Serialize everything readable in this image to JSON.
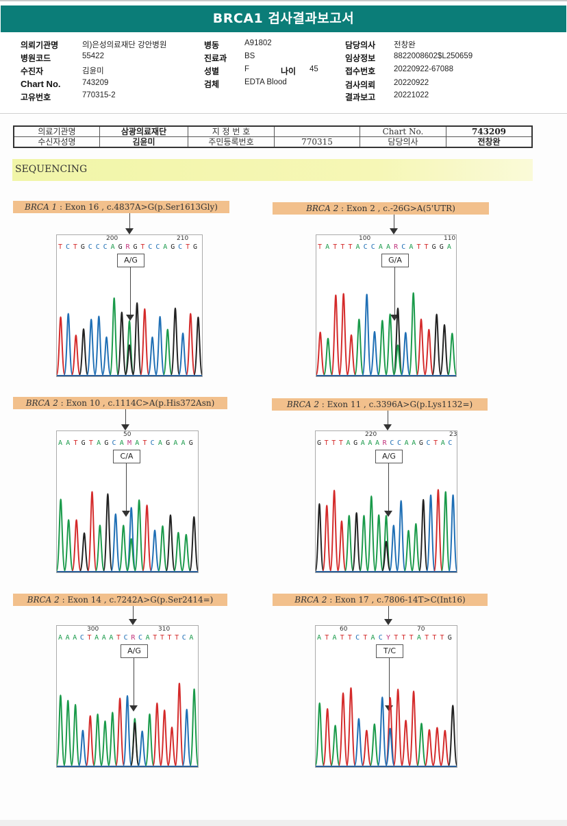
{
  "report": {
    "title": "BRCA1 검사결과보고서",
    "fields": {
      "requesting_institution": {
        "label": "의뢰기관명",
        "value": "의)은성의료재단 강안병원"
      },
      "hospital_code": {
        "label": "병원코드",
        "value": "55422"
      },
      "patient": {
        "label": "수진자",
        "value": "김윤미"
      },
      "chart_no": {
        "label": "Chart No.",
        "value": "743209"
      },
      "unique_no": {
        "label": "고유번호",
        "value": "770315-2"
      },
      "ward": {
        "label": "병동",
        "value": "A91802"
      },
      "department": {
        "label": "진료과",
        "value": "BS"
      },
      "sex": {
        "label": "성별",
        "value": "F"
      },
      "age": {
        "label": "나이",
        "value": "45"
      },
      "specimen": {
        "label": "검체",
        "value": "EDTA Blood"
      },
      "physician": {
        "label": "담당의사",
        "value": "전창완"
      },
      "clinical_info": {
        "label": "임상정보",
        "value": "8822008602$L250659"
      },
      "receipt_no": {
        "label": "접수번호",
        "value": "20220922-67088"
      },
      "request_date": {
        "label": "검사의뢰",
        "value": "20220922"
      },
      "result_date": {
        "label": "결과보고",
        "value": "20221022"
      }
    }
  },
  "scan_header": {
    "row1": [
      "의료기관명",
      "삼광의료재단",
      "지 정 번 호",
      "",
      "Chart No.",
      "743209"
    ],
    "row2": [
      "수신자성명",
      "김윤미",
      "주민등록번호",
      "770315",
      "담당의사",
      "전창완"
    ]
  },
  "section_title": "SEQUENCING",
  "panels": [
    {
      "gene": "BRCA 1",
      "desc": " : Exon 16 , c.4837A>G(p.Ser1613Gly)",
      "ticks": [
        "200",
        "210"
      ],
      "sequence": "TCTGCCCAG RGTCCAGCTG",
      "call": "A/G"
    },
    {
      "gene": "BRCA 2",
      "desc": " : Exon 2 , c.-26G>A(5'UTR)",
      "ticks": [
        "100",
        "110"
      ],
      "sequence": "TATTTACCAARCATTGGA",
      "call": "G/A"
    },
    {
      "gene": "BRCA 2",
      "desc": " : Exon 10 , c.1114C>A(p.His372Asn)",
      "ticks": [
        "50"
      ],
      "sequence": "AATGTAGCAMATCAGAAG",
      "call": "C/A"
    },
    {
      "gene": "BRCA 2",
      "desc": " : Exon 11 , c.3396A>G(p.Lys1132=)",
      "ticks": [
        "220",
        "23"
      ],
      "sequence": "GTTTAGAAARCCAAGCTAC",
      "call": "A/G"
    },
    {
      "gene": "BRCA 2",
      "desc": " : Exon 14 , c.7242A>G(p.Ser2414=)",
      "ticks": [
        "300",
        "310"
      ],
      "sequence": "AAACTAAATCRCATTTTCA",
      "call": "A/G"
    },
    {
      "gene": "BRCA 2",
      "desc": " : Exon 17 , c.7806-14T>C(Int16)",
      "ticks": [
        "60",
        "70"
      ],
      "sequence": "ATATTCTACYTTTATTTG",
      "call": "T/C"
    }
  ],
  "colors": {
    "A": "#1a9a4a",
    "C": "#1f6fb5",
    "G": "#222222",
    "T": "#d42a2a",
    "ambiguous": "#c0307a",
    "title_bar": "#0b7d78"
  }
}
